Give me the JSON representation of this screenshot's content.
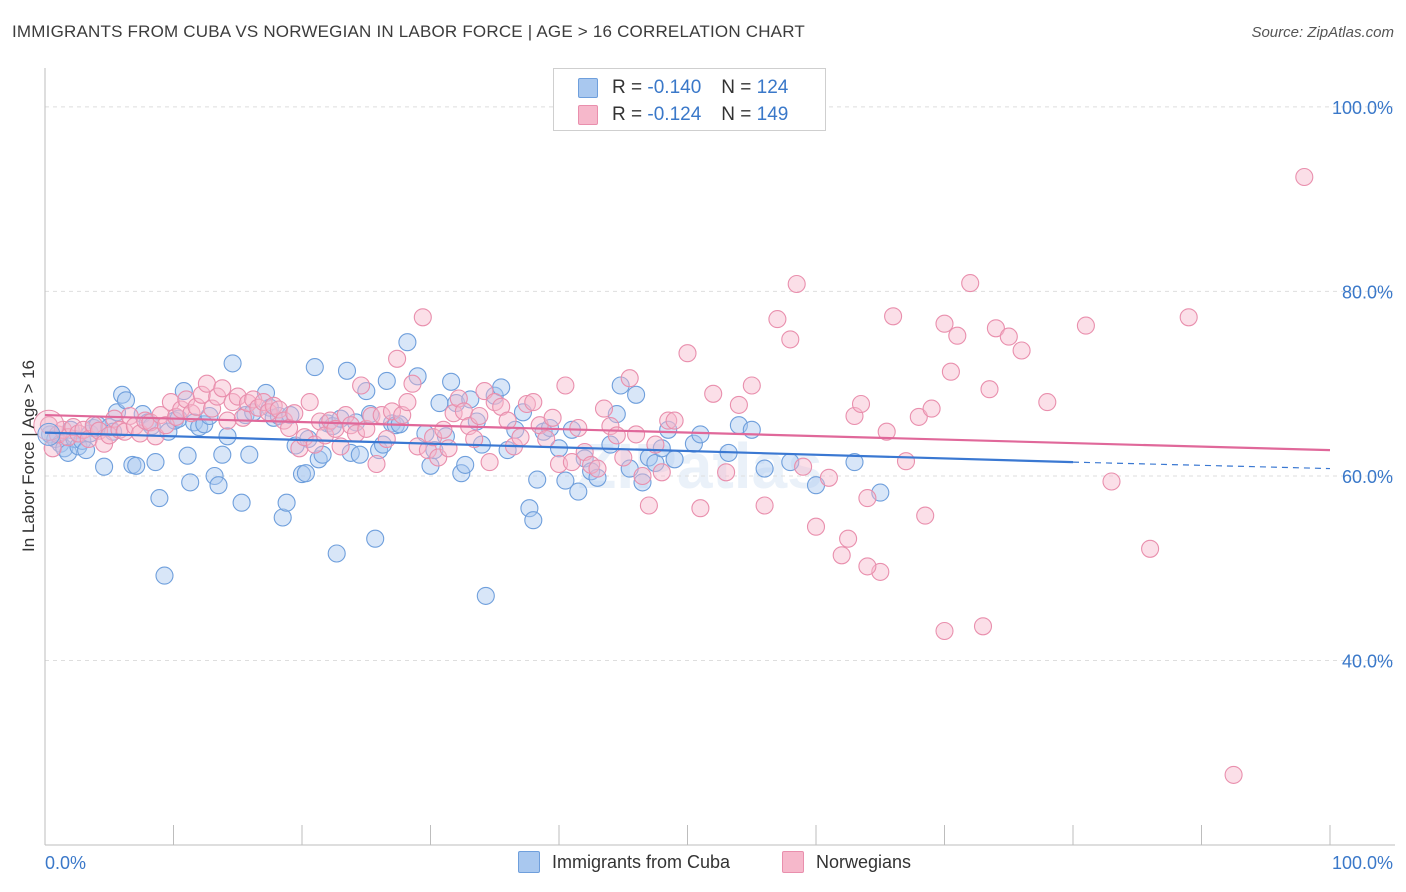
{
  "title": "IMMIGRANTS FROM CUBA VS NORWEGIAN IN LABOR FORCE | AGE > 16 CORRELATION CHART",
  "source": "Source: ZipAtlas.com",
  "watermark": "ZIPatlas",
  "colors": {
    "cuba_fill": "#a9c8ef",
    "cuba_stroke": "#6f9fdc",
    "cuba_line": "#3a78d2",
    "norway_fill": "#f6b8cb",
    "norway_stroke": "#e98fad",
    "norway_line": "#e0689a",
    "axis_text": "#3a78c9",
    "grid": "#dedede"
  },
  "stats": {
    "cuba": {
      "r_label": "R =",
      "r": "-0.140",
      "n_label": "N =",
      "n": "124"
    },
    "norway": {
      "r_label": "R =",
      "r": "-0.124",
      "n_label": "N =",
      "n": "149"
    }
  },
  "legend": {
    "cuba": "Immigrants from Cuba",
    "norway": "Norwegians"
  },
  "chart_data": {
    "type": "scatter",
    "title": "IMMIGRANTS FROM CUBA VS NORWEGIAN IN LABOR FORCE | AGE > 16 CORRELATION CHART",
    "xlabel": "",
    "ylabel": "In Labor Force | Age > 16",
    "xlim": [
      0,
      100
    ],
    "ylim": [
      20,
      104
    ],
    "x_tick_labels": [
      "0.0%",
      "100.0%"
    ],
    "y_ticks": [
      40,
      60,
      80,
      100
    ],
    "y_tick_labels": [
      "40.0%",
      "60.0%",
      "80.0%",
      "100.0%"
    ],
    "grid": true,
    "legend_position": "bottom",
    "series": [
      {
        "name": "Immigrants from Cuba",
        "trend": {
          "x": [
            0,
            80,
            100
          ],
          "y": [
            64.7,
            61.5,
            60.8
          ],
          "dashed_from": 80
        },
        "points": [
          [
            0.4,
            64.5
          ],
          [
            0.8,
            64.0
          ],
          [
            1.2,
            63.5
          ],
          [
            1.5,
            63.0
          ],
          [
            1.8,
            62.5
          ],
          [
            2.0,
            65.0
          ],
          [
            2.3,
            64.0
          ],
          [
            2.6,
            63.2
          ],
          [
            2.9,
            63.8
          ],
          [
            3.2,
            62.8
          ],
          [
            3.5,
            64.6
          ],
          [
            3.8,
            65.2
          ],
          [
            4.1,
            65.5
          ],
          [
            4.6,
            61.0
          ],
          [
            5.0,
            65.3
          ],
          [
            5.3,
            64.8
          ],
          [
            5.6,
            66.9
          ],
          [
            6.0,
            68.8
          ],
          [
            6.3,
            68.2
          ],
          [
            6.8,
            61.2
          ],
          [
            7.1,
            61.1
          ],
          [
            7.6,
            66.7
          ],
          [
            8.0,
            65.8
          ],
          [
            8.3,
            65.4
          ],
          [
            8.6,
            61.5
          ],
          [
            8.9,
            57.6
          ],
          [
            9.3,
            49.2
          ],
          [
            9.6,
            64.8
          ],
          [
            10.1,
            66.0
          ],
          [
            10.4,
            66.2
          ],
          [
            10.8,
            69.2
          ],
          [
            11.1,
            62.2
          ],
          [
            11.3,
            59.3
          ],
          [
            11.6,
            65.8
          ],
          [
            12.0,
            65.3
          ],
          [
            12.4,
            65.6
          ],
          [
            12.8,
            66.5
          ],
          [
            13.2,
            60.0
          ],
          [
            13.5,
            59.0
          ],
          [
            13.8,
            62.3
          ],
          [
            14.2,
            64.3
          ],
          [
            14.6,
            72.2
          ],
          [
            15.3,
            57.1
          ],
          [
            15.6,
            66.6
          ],
          [
            15.9,
            62.3
          ],
          [
            16.2,
            66.9
          ],
          [
            17.2,
            69.0
          ],
          [
            17.5,
            67.4
          ],
          [
            17.8,
            66.3
          ],
          [
            18.2,
            66.5
          ],
          [
            18.5,
            55.5
          ],
          [
            18.8,
            57.1
          ],
          [
            19.1,
            66.6
          ],
          [
            19.5,
            63.3
          ],
          [
            20.0,
            60.2
          ],
          [
            20.3,
            60.3
          ],
          [
            20.5,
            64.0
          ],
          [
            21.0,
            71.8
          ],
          [
            21.3,
            61.8
          ],
          [
            21.6,
            62.3
          ],
          [
            22.0,
            65.7
          ],
          [
            22.4,
            65.4
          ],
          [
            22.7,
            51.6
          ],
          [
            23.0,
            66.2
          ],
          [
            23.5,
            71.4
          ],
          [
            23.8,
            62.5
          ],
          [
            24.2,
            65.8
          ],
          [
            24.5,
            62.3
          ],
          [
            25.0,
            69.2
          ],
          [
            25.3,
            66.7
          ],
          [
            25.7,
            53.2
          ],
          [
            26.0,
            62.8
          ],
          [
            26.3,
            63.4
          ],
          [
            26.6,
            70.3
          ],
          [
            27.0,
            65.7
          ],
          [
            27.3,
            65.5
          ],
          [
            27.6,
            65.6
          ],
          [
            28.2,
            74.5
          ],
          [
            29.0,
            70.8
          ],
          [
            29.6,
            64.6
          ],
          [
            30.0,
            61.1
          ],
          [
            30.3,
            62.8
          ],
          [
            30.7,
            67.9
          ],
          [
            31.2,
            64.3
          ],
          [
            31.6,
            70.2
          ],
          [
            32.0,
            67.9
          ],
          [
            32.4,
            60.3
          ],
          [
            32.7,
            61.2
          ],
          [
            33.1,
            68.3
          ],
          [
            33.6,
            65.9
          ],
          [
            34.0,
            63.4
          ],
          [
            34.3,
            47.0
          ],
          [
            35.0,
            68.7
          ],
          [
            35.5,
            69.6
          ],
          [
            36.0,
            62.8
          ],
          [
            36.6,
            65.0
          ],
          [
            37.2,
            66.9
          ],
          [
            37.7,
            56.5
          ],
          [
            38.0,
            55.2
          ],
          [
            38.3,
            59.6
          ],
          [
            38.8,
            64.8
          ],
          [
            39.3,
            65.2
          ],
          [
            40.0,
            63.0
          ],
          [
            40.5,
            59.5
          ],
          [
            41.0,
            65.0
          ],
          [
            41.5,
            58.3
          ],
          [
            42.0,
            61.9
          ],
          [
            42.5,
            60.5
          ],
          [
            43.0,
            59.8
          ],
          [
            44.0,
            63.4
          ],
          [
            44.5,
            66.7
          ],
          [
            44.8,
            69.8
          ],
          [
            45.5,
            60.8
          ],
          [
            46.0,
            68.8
          ],
          [
            46.5,
            59.3
          ],
          [
            47.0,
            62.0
          ],
          [
            47.5,
            61.4
          ],
          [
            48.0,
            63.0
          ],
          [
            48.5,
            65.0
          ],
          [
            49.0,
            61.8
          ],
          [
            50.5,
            63.5
          ],
          [
            51.0,
            64.5
          ],
          [
            53.2,
            62.5
          ],
          [
            54.0,
            65.5
          ],
          [
            55.0,
            65.0
          ],
          [
            56.0,
            60.8
          ],
          [
            58.0,
            61.5
          ],
          [
            60.0,
            59.0
          ],
          [
            63.0,
            61.5
          ],
          [
            65.0,
            58.2
          ]
        ]
      },
      {
        "name": "Norwegians",
        "trend": {
          "x": [
            0,
            100
          ],
          "y": [
            66.6,
            62.8
          ]
        },
        "points": [
          [
            0.3,
            65.5
          ],
          [
            0.6,
            63.0
          ],
          [
            1.0,
            64.5
          ],
          [
            1.4,
            65.0
          ],
          [
            1.8,
            64.2
          ],
          [
            2.2,
            65.3
          ],
          [
            2.6,
            64.6
          ],
          [
            3.0,
            65.0
          ],
          [
            3.4,
            64.0
          ],
          [
            3.8,
            65.5
          ],
          [
            4.2,
            64.9
          ],
          [
            4.6,
            63.5
          ],
          [
            5.0,
            64.4
          ],
          [
            5.4,
            66.2
          ],
          [
            5.8,
            65.0
          ],
          [
            6.2,
            64.8
          ],
          [
            6.6,
            66.5
          ],
          [
            7.0,
            65.4
          ],
          [
            7.4,
            64.6
          ],
          [
            7.8,
            66.0
          ],
          [
            8.2,
            65.8
          ],
          [
            8.6,
            64.3
          ],
          [
            9.0,
            66.6
          ],
          [
            9.4,
            65.5
          ],
          [
            9.8,
            68.0
          ],
          [
            10.2,
            66.4
          ],
          [
            10.6,
            67.2
          ],
          [
            11.0,
            68.3
          ],
          [
            11.4,
            66.8
          ],
          [
            11.8,
            67.5
          ],
          [
            12.2,
            68.8
          ],
          [
            12.6,
            70.0
          ],
          [
            13.0,
            67.3
          ],
          [
            13.4,
            68.6
          ],
          [
            13.8,
            69.5
          ],
          [
            14.2,
            66.0
          ],
          [
            14.6,
            68.0
          ],
          [
            15.0,
            68.6
          ],
          [
            15.4,
            66.3
          ],
          [
            15.8,
            67.9
          ],
          [
            16.2,
            68.3
          ],
          [
            16.6,
            67.4
          ],
          [
            17.0,
            68.0
          ],
          [
            17.4,
            66.9
          ],
          [
            17.8,
            67.6
          ],
          [
            18.2,
            67.2
          ],
          [
            18.6,
            66.0
          ],
          [
            19.0,
            65.2
          ],
          [
            19.4,
            66.8
          ],
          [
            19.8,
            63.0
          ],
          [
            20.2,
            64.2
          ],
          [
            20.6,
            68.0
          ],
          [
            21.0,
            63.4
          ],
          [
            21.4,
            65.9
          ],
          [
            21.8,
            64.4
          ],
          [
            22.2,
            66.0
          ],
          [
            22.6,
            65.1
          ],
          [
            23.0,
            63.2
          ],
          [
            23.4,
            66.6
          ],
          [
            23.8,
            65.5
          ],
          [
            24.2,
            64.6
          ],
          [
            24.6,
            69.8
          ],
          [
            25.0,
            65.1
          ],
          [
            25.4,
            66.5
          ],
          [
            25.8,
            61.3
          ],
          [
            26.2,
            66.6
          ],
          [
            26.6,
            64.0
          ],
          [
            27.0,
            67.0
          ],
          [
            27.4,
            72.7
          ],
          [
            27.8,
            66.6
          ],
          [
            28.2,
            68.0
          ],
          [
            28.6,
            70.0
          ],
          [
            29.0,
            63.2
          ],
          [
            29.4,
            77.2
          ],
          [
            29.8,
            62.8
          ],
          [
            30.2,
            64.2
          ],
          [
            30.6,
            62.0
          ],
          [
            31.0,
            65.0
          ],
          [
            31.4,
            63.0
          ],
          [
            31.8,
            66.8
          ],
          [
            32.2,
            68.4
          ],
          [
            32.6,
            67.0
          ],
          [
            33.0,
            65.4
          ],
          [
            33.4,
            64.0
          ],
          [
            33.8,
            66.5
          ],
          [
            34.2,
            69.2
          ],
          [
            34.6,
            61.5
          ],
          [
            35.0,
            68.0
          ],
          [
            35.5,
            67.5
          ],
          [
            36.0,
            66.0
          ],
          [
            36.5,
            63.2
          ],
          [
            37.0,
            64.2
          ],
          [
            37.5,
            67.8
          ],
          [
            38.0,
            68.0
          ],
          [
            38.5,
            65.5
          ],
          [
            39.0,
            64.0
          ],
          [
            39.5,
            66.3
          ],
          [
            40.0,
            61.3
          ],
          [
            40.5,
            69.8
          ],
          [
            41.0,
            61.5
          ],
          [
            41.5,
            65.2
          ],
          [
            42.0,
            62.6
          ],
          [
            42.5,
            61.2
          ],
          [
            43.0,
            60.8
          ],
          [
            43.5,
            67.3
          ],
          [
            44.0,
            65.4
          ],
          [
            44.5,
            64.4
          ],
          [
            45.0,
            62.0
          ],
          [
            45.5,
            70.6
          ],
          [
            46.0,
            64.5
          ],
          [
            46.5,
            60.0
          ],
          [
            47.0,
            56.8
          ],
          [
            47.5,
            63.4
          ],
          [
            48.0,
            60.4
          ],
          [
            48.5,
            66.0
          ],
          [
            49.0,
            66.0
          ],
          [
            50.0,
            73.3
          ],
          [
            51.0,
            56.5
          ],
          [
            52.0,
            68.9
          ],
          [
            53.0,
            60.4
          ],
          [
            54.0,
            67.7
          ],
          [
            55.0,
            69.8
          ],
          [
            56.0,
            56.8
          ],
          [
            57.0,
            77.0
          ],
          [
            58.0,
            74.8
          ],
          [
            58.5,
            80.8
          ],
          [
            59.0,
            61.0
          ],
          [
            60.0,
            54.5
          ],
          [
            61.0,
            59.8
          ],
          [
            62.0,
            51.4
          ],
          [
            62.5,
            53.2
          ],
          [
            63.0,
            66.5
          ],
          [
            63.5,
            67.8
          ],
          [
            64.0,
            57.6
          ],
          [
            65.0,
            49.6
          ],
          [
            65.5,
            64.8
          ],
          [
            66.0,
            77.3
          ],
          [
            67.0,
            61.6
          ],
          [
            68.0,
            66.4
          ],
          [
            69.0,
            67.3
          ],
          [
            70.0,
            76.5
          ],
          [
            70.5,
            71.3
          ],
          [
            71.0,
            75.2
          ],
          [
            72.0,
            80.9
          ],
          [
            73.0,
            43.7
          ],
          [
            73.5,
            69.4
          ],
          [
            74.0,
            76.0
          ],
          [
            75.0,
            75.1
          ],
          [
            76.0,
            73.6
          ],
          [
            78.0,
            68.0
          ],
          [
            81.0,
            76.3
          ],
          [
            83.0,
            59.4
          ],
          [
            86.0,
            52.1
          ],
          [
            89.0,
            77.2
          ],
          [
            92.5,
            27.6
          ],
          [
            98.0,
            92.4
          ],
          [
            68.5,
            55.7
          ],
          [
            64.0,
            50.2
          ],
          [
            70.0,
            43.2
          ]
        ]
      }
    ]
  }
}
